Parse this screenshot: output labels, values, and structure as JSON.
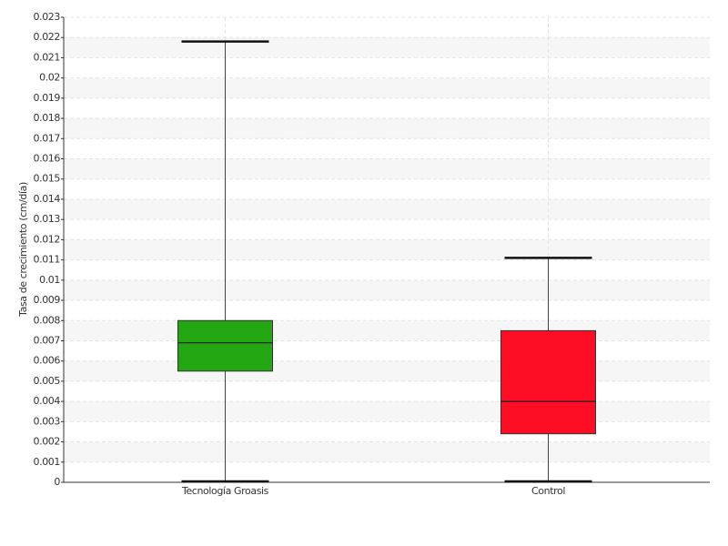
{
  "chart_data": {
    "type": "box",
    "ylabel": "Tasa de crecimiento (cm/día)",
    "categories": [
      "Tecnología Groasis",
      "Control"
    ],
    "boxes": [
      {
        "color": "#22a612",
        "min": 0,
        "q1": 0.0055,
        "median": 0.0069,
        "q3": 0.008,
        "max": 0.0218
      },
      {
        "color": "#ff0d25",
        "min": 0,
        "q1": 0.0024,
        "median": 0.004,
        "q3": 0.0075,
        "max": 0.0111
      }
    ],
    "ylim": [
      0,
      0.023
    ],
    "yticks": [
      0,
      0.001,
      0.002,
      0.003,
      0.004,
      0.005,
      0.006,
      0.007,
      0.008,
      0.009,
      0.01,
      0.011,
      0.012,
      0.013,
      0.014,
      0.015,
      0.016,
      0.017,
      0.018,
      0.019,
      0.02,
      0.021,
      0.022,
      0.023
    ],
    "grid": true
  }
}
